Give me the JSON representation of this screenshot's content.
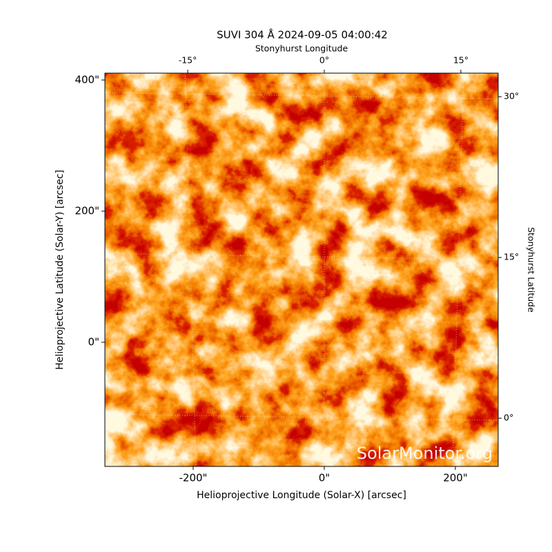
{
  "chart_data": {
    "type": "image",
    "title": "SUVI 304 Å 2024-09-05 04:00:42",
    "xlabel": "Helioprojective Longitude (Solar-X) [arcsec]",
    "ylabel": "Helioprojective Latitude (Solar-Y) [arcsec]",
    "x2label": "Stonyhurst Longitude",
    "y2label": "Stonyhurst Latitude",
    "xlim": [
      -334.7,
      265.3
    ],
    "ylim": [
      -189.5,
      410.5
    ],
    "xticks": [
      {
        "value": -200,
        "label": "-200\""
      },
      {
        "value": 0,
        "label": "0\""
      },
      {
        "value": 200,
        "label": "200\""
      }
    ],
    "yticks": [
      {
        "value": 0,
        "label": "0\""
      },
      {
        "value": 200,
        "label": "200\""
      },
      {
        "value": 400,
        "label": "400\""
      }
    ],
    "x2lim": [
      -24.1,
      19.1
    ],
    "x2ticks": [
      {
        "value": -15,
        "label": "-15°"
      },
      {
        "value": 0,
        "label": "0°"
      },
      {
        "value": 15,
        "label": "15°"
      }
    ],
    "y2lim": [
      -4.5,
      32.2
    ],
    "y2ticks": [
      {
        "value": 0,
        "label": "0°"
      },
      {
        "value": 15,
        "label": "15°"
      },
      {
        "value": 30,
        "label": "30°"
      }
    ],
    "grid": true,
    "watermark": "SolarMonitor.org"
  }
}
